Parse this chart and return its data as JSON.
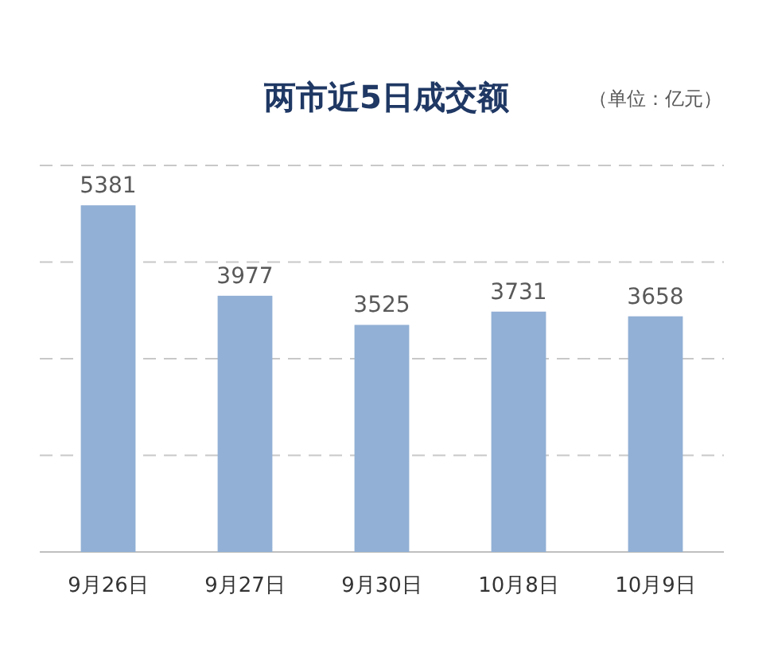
{
  "chart_data": {
    "type": "bar",
    "title": "两市近5日成交额",
    "subtitle": "（单位：亿元）",
    "categories": [
      "9月26日",
      "9月27日",
      "9月30日",
      "10月8日",
      "10月9日"
    ],
    "values": [
      5381,
      3977,
      3525,
      3731,
      3658
    ],
    "color": "#92b0d5",
    "ylim": [
      0,
      6000
    ],
    "yticks": [
      {
        "value": 0,
        "label": null
      },
      {
        "value": 1500,
        "label": null
      },
      {
        "value": 3000,
        "label": null
      },
      {
        "value": 4500,
        "label": null
      },
      {
        "value": 6000,
        "label": null
      }
    ],
    "grid": "y",
    "data_labels": true,
    "legend": false
  }
}
